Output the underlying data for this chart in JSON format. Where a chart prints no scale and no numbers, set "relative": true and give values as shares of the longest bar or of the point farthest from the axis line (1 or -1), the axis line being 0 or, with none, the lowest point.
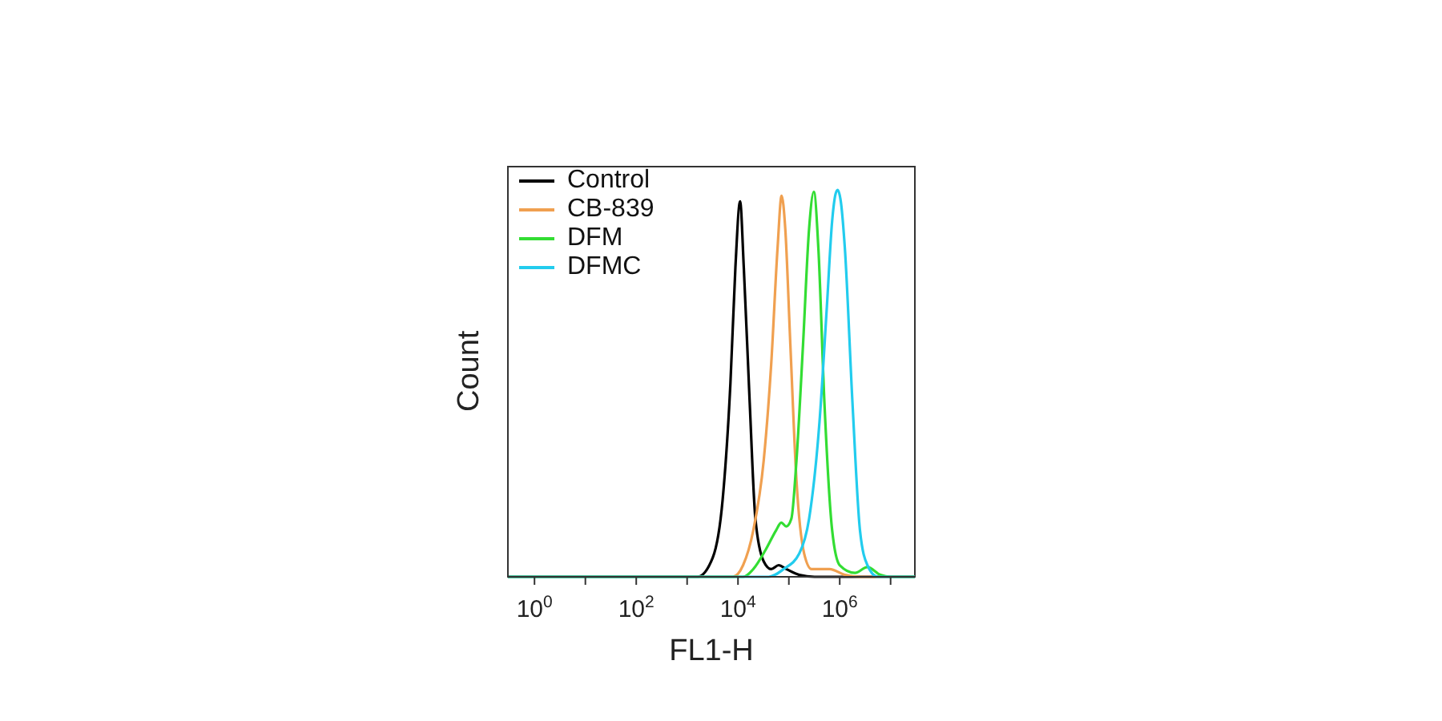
{
  "chart_data": {
    "type": "line",
    "xlabel": "FL1-H",
    "ylabel": "Count",
    "relative": true,
    "log": "x",
    "xlim": [
      0.3,
      30000000
    ],
    "xticks": [
      {
        "value": 1,
        "label": "10$^{0}$"
      },
      {
        "value": 10,
        "label": null
      },
      {
        "value": 100,
        "label": "10$^{2}$"
      },
      {
        "value": 1000,
        "label": null
      },
      {
        "value": 10000,
        "label": "10$^{4}$"
      },
      {
        "value": 100000,
        "label": null
      },
      {
        "value": 1000000,
        "label": "10$^{6}$"
      },
      {
        "value": 10000000,
        "label": null
      }
    ],
    "grid": false,
    "legend": "top left",
    "marker": "none",
    "line_style": "solid",
    "series": [
      {
        "name": "Control",
        "color": "#000000",
        "x": [
          0.3,
          1600,
          3200,
          5000,
          7100,
          8900,
          11000,
          13000,
          17000,
          22000,
          32000,
          45000,
          63000,
          89000,
          160000,
          320000,
          30000000
        ],
        "values": [
          0,
          0,
          0.05,
          0.2,
          0.5,
          0.8,
          0.97,
          0.8,
          0.45,
          0.15,
          0.04,
          0.02,
          0.03,
          0.02,
          0.005,
          0,
          0
        ]
      },
      {
        "name": "CB-839",
        "color": "#f0a050",
        "x": [
          0.3,
          7900,
          12600,
          20000,
          32000,
          45000,
          60000,
          72000,
          85000,
          107000,
          141000,
          200000,
          280000,
          630000,
          1260000,
          2500000,
          30000000
        ],
        "values": [
          0,
          0,
          0.03,
          0.12,
          0.3,
          0.55,
          0.85,
          0.985,
          0.9,
          0.6,
          0.25,
          0.06,
          0.02,
          0.02,
          0.005,
          0,
          0
        ]
      },
      {
        "name": "DFM",
        "color": "#33dd33",
        "x": [
          0.3,
          12600,
          20000,
          35000,
          56000,
          71000,
          89000,
          112000,
          141000,
          190000,
          250000,
          310000,
          380000,
          500000,
          710000,
          1000000,
          2000000,
          3500000,
          6300000,
          10000000,
          30000000
        ],
        "values": [
          0,
          0,
          0.02,
          0.07,
          0.12,
          0.14,
          0.13,
          0.15,
          0.3,
          0.6,
          0.9,
          0.995,
          0.85,
          0.45,
          0.12,
          0.03,
          0.01,
          0.025,
          0.005,
          0,
          0
        ]
      },
      {
        "name": "DFMC",
        "color": "#22ccee",
        "x": [
          0.3,
          40000,
          79000,
          160000,
          250000,
          400000,
          560000,
          710000,
          830000,
          910000,
          1050000,
          1260000,
          1780000,
          2500000,
          3500000,
          5600000,
          30000000
        ],
        "values": [
          0,
          0,
          0.02,
          0.06,
          0.15,
          0.4,
          0.7,
          0.92,
          0.99,
          1,
          0.97,
          0.85,
          0.45,
          0.12,
          0.03,
          0,
          0
        ]
      }
    ]
  }
}
